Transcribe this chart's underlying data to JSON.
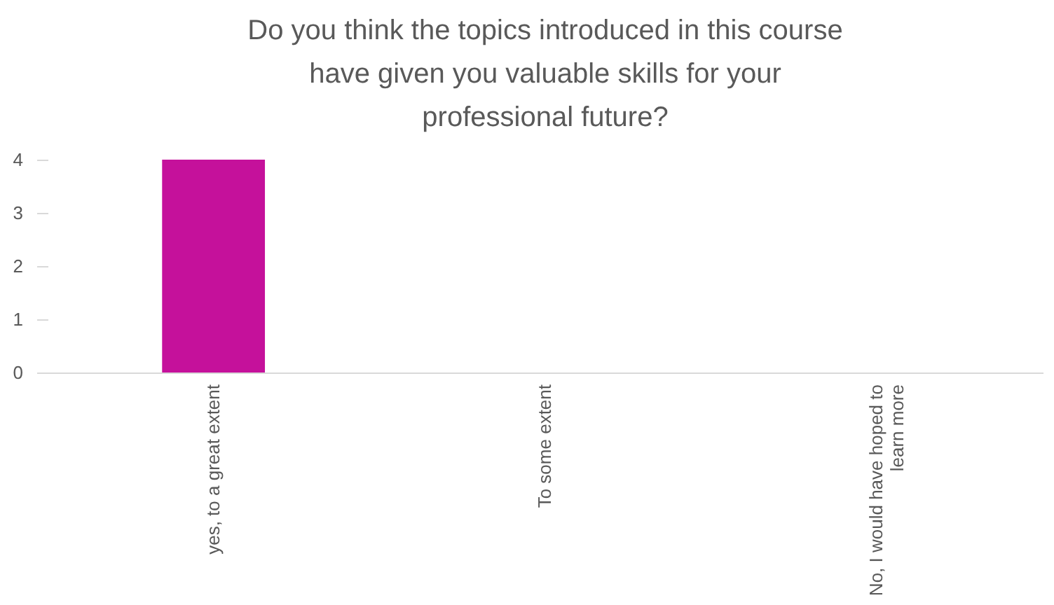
{
  "chart_data": {
    "type": "bar",
    "title": "Do you think the topics introduced in this course have given you valuable skills for your professional future?",
    "categories": [
      "yes, to a great extent",
      "To some extent",
      "No, I would have hoped to learn more"
    ],
    "values": [
      4,
      0,
      0
    ],
    "color": "#c5119b",
    "ylim": [
      0,
      4
    ],
    "yticks": [
      0,
      1,
      2,
      3,
      4
    ],
    "grid": false
  }
}
